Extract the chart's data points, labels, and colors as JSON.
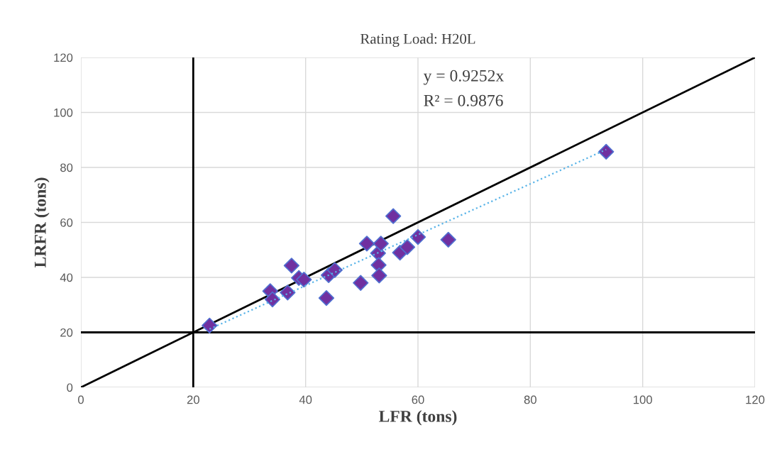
{
  "chart_data": {
    "type": "scatter",
    "title": "Rating Load: H20L",
    "xlabel": "LFR (tons)",
    "ylabel": "LRFR (tons)",
    "xlim": [
      0,
      120
    ],
    "ylim": [
      0,
      120
    ],
    "xticks": [
      0,
      20,
      40,
      60,
      80,
      100,
      120
    ],
    "yticks": [
      0,
      20,
      40,
      60,
      80,
      100,
      120
    ],
    "grid": true,
    "legend": false,
    "series": [
      {
        "color": "#7030a0",
        "marker": "diamond",
        "x": [
          22.9,
          33.7,
          34.1,
          36.8,
          37.5,
          38.8,
          39.7,
          43.7,
          44.1,
          45.2,
          49.8,
          50.9,
          52.9,
          53.0,
          53.1,
          53.4,
          55.6,
          56.8,
          58.1,
          60.0,
          65.4,
          93.5
        ],
        "values": [
          22.5,
          35.0,
          32.0,
          34.5,
          44.3,
          39.8,
          39.2,
          32.5,
          40.8,
          42.7,
          38.0,
          52.3,
          48.8,
          44.5,
          40.7,
          52.3,
          62.3,
          49.0,
          51.0,
          54.7,
          53.7,
          85.7
        ]
      },
      {
        "type": "line",
        "color": "#5ab4e8",
        "marker": "none",
        "line_style": "dotted",
        "x": [
          22.9,
          93.5
        ],
        "values": [
          21.2,
          86.5
        ]
      },
      {
        "type": "line",
        "color": "#000000",
        "marker": "none",
        "line_style": "solid",
        "x": [
          0,
          120
        ],
        "values": [
          0,
          120
        ]
      },
      {
        "type": "line",
        "color": "#000000",
        "marker": "none",
        "line_style": "solid",
        "x": [
          20,
          20
        ],
        "values": [
          0,
          120
        ]
      },
      {
        "type": "line",
        "color": "#000000",
        "marker": "none",
        "line_style": "solid",
        "x": [
          0,
          120
        ],
        "values": [
          20,
          20
        ]
      }
    ],
    "annotations": [
      "y = 0.9252x",
      "R² = 0.9876"
    ]
  }
}
